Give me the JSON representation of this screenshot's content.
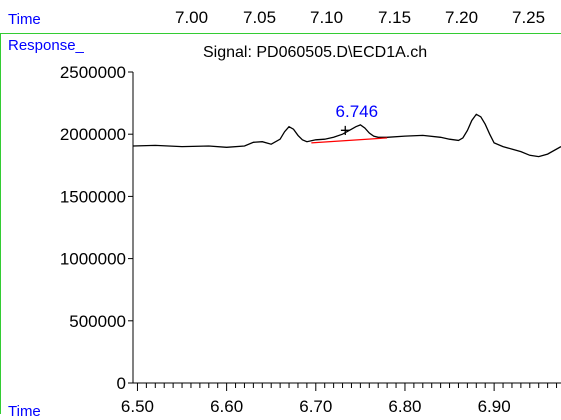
{
  "top_axis": {
    "label": "Time",
    "ticks": [
      "7.00",
      "7.05",
      "7.10",
      "7.15",
      "7.20",
      "7.25"
    ]
  },
  "response_label": "Response_",
  "bottom_time_label": "Time",
  "colors": {
    "frame": "#33cc33",
    "label_blue": "#0000ff",
    "baseline": "#ff0000",
    "trace": "#000000"
  },
  "chart_data": {
    "type": "line",
    "title": "Signal: PD060505.D\\ECD1A.ch",
    "xlabel": "Time",
    "ylabel": "Response_",
    "xlim": [
      6.495,
      6.975
    ],
    "ylim": [
      0,
      2500000
    ],
    "xticks": [
      "6.50",
      "6.60",
      "6.70",
      "6.80",
      "6.90"
    ],
    "yticks": [
      "0",
      "500000",
      "1000000",
      "1500000",
      "2000000",
      "2500000"
    ],
    "grid": false,
    "series": [
      {
        "x": [
          6.495,
          6.52,
          6.55,
          6.58,
          6.6,
          6.62,
          6.63,
          6.64,
          6.65,
          6.66,
          6.665,
          6.67,
          6.675,
          6.68,
          6.685,
          6.69,
          6.7,
          6.71,
          6.72,
          6.73,
          6.74,
          6.745,
          6.75,
          6.755,
          6.76,
          6.765,
          6.77,
          6.78,
          6.8,
          6.82,
          6.84,
          6.85,
          6.86,
          6.865,
          6.87,
          6.875,
          6.88,
          6.885,
          6.89,
          6.895,
          6.9,
          6.91,
          6.92,
          6.93,
          6.94,
          6.95,
          6.96,
          6.975
        ],
        "y": [
          1905000,
          1910000,
          1900000,
          1905000,
          1895000,
          1905000,
          1935000,
          1940000,
          1920000,
          1960000,
          2020000,
          2060000,
          2040000,
          1990000,
          1955000,
          1940000,
          1955000,
          1960000,
          1975000,
          2000000,
          2040000,
          2060000,
          2075000,
          2050000,
          2010000,
          1985000,
          1975000,
          1975000,
          1985000,
          1990000,
          1975000,
          1960000,
          1950000,
          1970000,
          2030000,
          2110000,
          2160000,
          2140000,
          2080000,
          2000000,
          1930000,
          1900000,
          1880000,
          1860000,
          1830000,
          1820000,
          1840000,
          1900000
        ]
      }
    ],
    "annotations": [
      {
        "text": "6.746",
        "x": 6.746,
        "y": 2140000
      }
    ],
    "baseline": {
      "x": [
        6.695,
        6.78
      ],
      "y": [
        1930000,
        1970000
      ]
    },
    "marker": {
      "symbol": "+",
      "x": 6.733,
      "y": 2030000
    }
  }
}
